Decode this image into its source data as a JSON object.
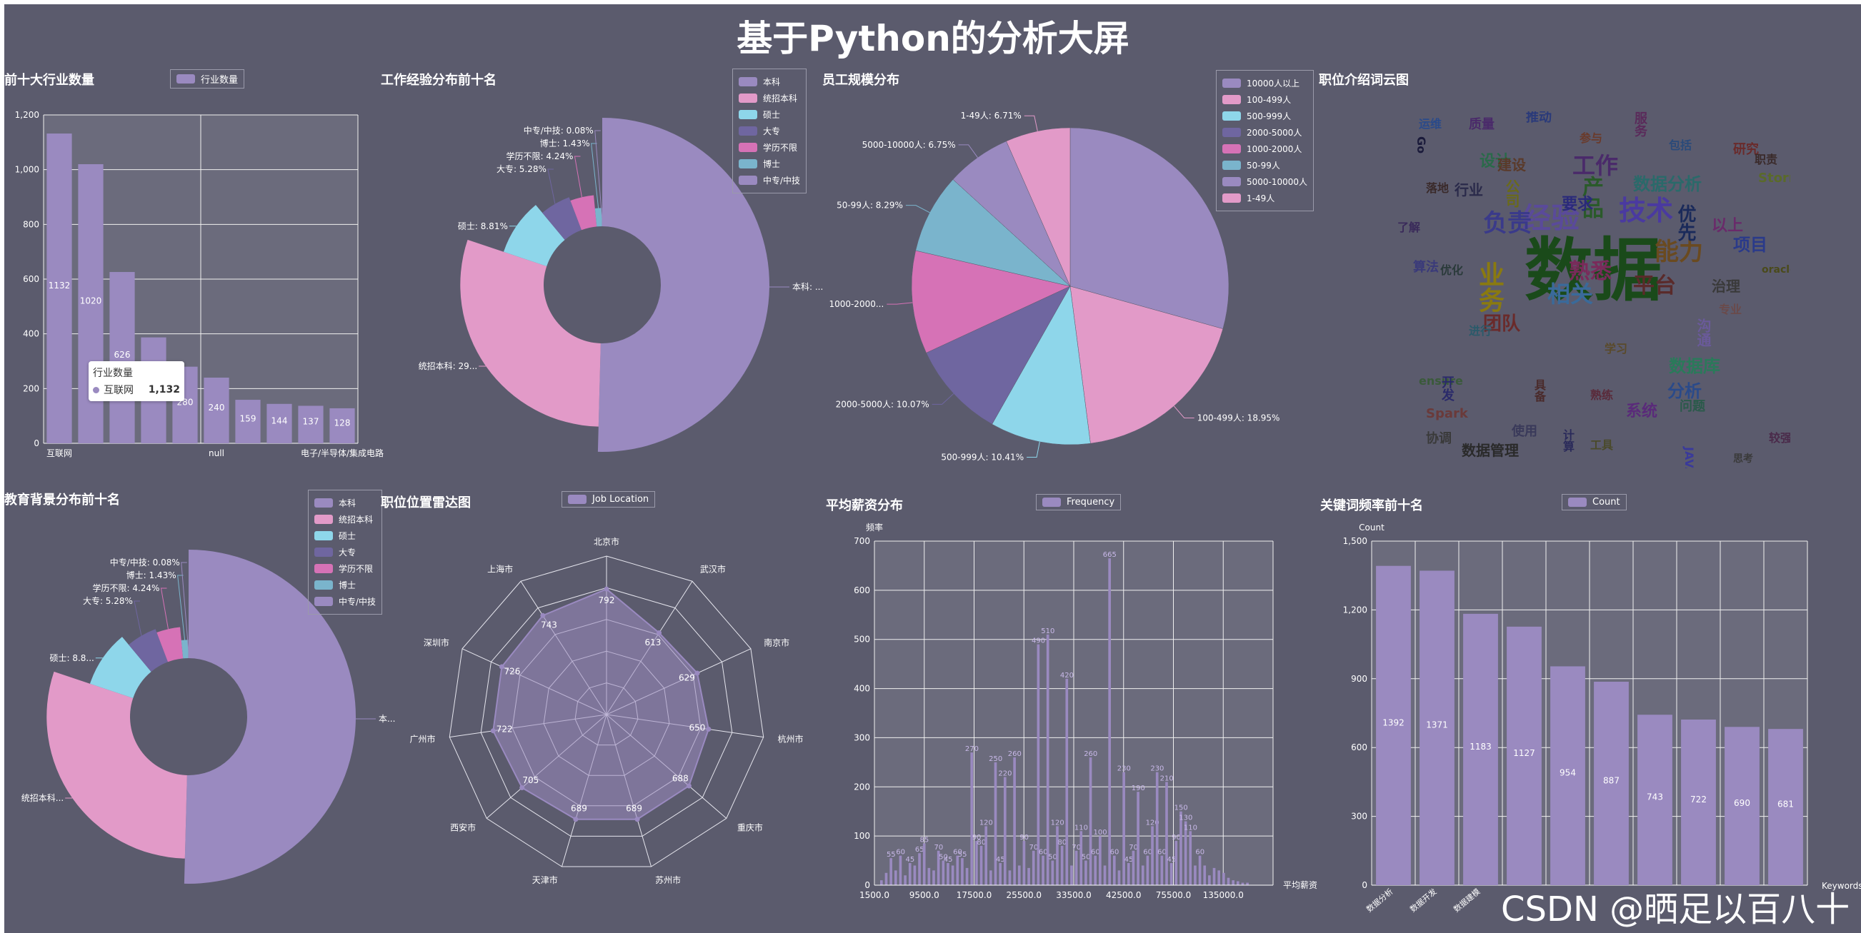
{
  "title": "基于Python的分析大屏",
  "watermark": "CSDN @晒足以百八十",
  "palette": [
    "#9a8ac0",
    "#e29ac8",
    "#8ed6ea",
    "#6f66a0",
    "#d672b6",
    "#7ab4cc",
    "#9a8ac0",
    "#e29ac8"
  ],
  "panels": {
    "industry": {
      "title": "前十大行业数量",
      "tooltip": {
        "series": "行业数量",
        "name": "互联网",
        "value": "1,132"
      },
      "chart_data": {
        "type": "bar",
        "series_name": "行业数量",
        "categories": [
          "互联网",
          "",
          "",
          "",
          "",
          "null",
          "",
          "",
          "",
          "电子/半导体/集成电路"
        ],
        "values": [
          1132,
          1020,
          626,
          387,
          280,
          240,
          159,
          144,
          137,
          128
        ],
        "labels": [
          "1132",
          "1020",
          "626",
          "",
          "280",
          "240",
          "159",
          "144",
          "137",
          "128"
        ],
        "yticks": [
          "0",
          "200",
          "400",
          "600",
          "800",
          "1,000",
          "1,200"
        ],
        "ylim": [
          0,
          1200
        ]
      }
    },
    "experience": {
      "title": "工作经验分布前十名",
      "chart_data": {
        "type": "pie",
        "variant": "rose-donut",
        "legend": [
          "本科",
          "统招本科",
          "硕士",
          "大专",
          "学历不限",
          "博士",
          "中专/中技"
        ],
        "slices": [
          {
            "name": "本科",
            "value": 50.37,
            "label": "本科: ..."
          },
          {
            "name": "统招本科",
            "value": 29.7,
            "label": "统招本科: 29..."
          },
          {
            "name": "硕士",
            "value": 8.81,
            "label": "硕士: 8.81%"
          },
          {
            "name": "大专",
            "value": 5.28,
            "label": "大专: 5.28%"
          },
          {
            "name": "学历不限",
            "value": 4.24,
            "label": "学历不限: 4.24%"
          },
          {
            "name": "博士",
            "value": 1.43,
            "label": "博士: 1.43%"
          },
          {
            "name": "中专/中技",
            "value": 0.08,
            "label": "中专/中技: 0.08%"
          }
        ]
      }
    },
    "scale": {
      "title": "员工规模分布",
      "chart_data": {
        "type": "pie",
        "legend": [
          "10000人以上",
          "100-499人",
          "500-999人",
          "2000-5000人",
          "1000-2000人",
          "50-99人",
          "5000-10000人",
          "1-49人"
        ],
        "slices": [
          {
            "name": "10000人以上",
            "value": 29.83,
            "label": ""
          },
          {
            "name": "100-499人",
            "value": 18.95,
            "label": "100-499人: 18.95%"
          },
          {
            "name": "500-999人",
            "value": 10.41,
            "label": "500-999人: 10.41%"
          },
          {
            "name": "2000-5000人",
            "value": 10.07,
            "label": "2000-5000人: 10.07%"
          },
          {
            "name": "1000-2000人",
            "value": 10.7,
            "label": "1000-2000..."
          },
          {
            "name": "50-99人",
            "value": 8.29,
            "label": "50-99人: 8.29%"
          },
          {
            "name": "5000-10000人",
            "value": 6.75,
            "label": "5000-10000人: 6.75%"
          },
          {
            "name": "1-49人",
            "value": 6.71,
            "label": "1-49人: 6.71%"
          }
        ]
      }
    },
    "wordcloud": {
      "title": "职位介绍词云图",
      "words": [
        {
          "t": "数据",
          "s": 96,
          "c": "#1a4a1a"
        },
        {
          "t": "经验",
          "s": 40,
          "c": "#5a4a9a"
        },
        {
          "t": "技术",
          "s": 38,
          "c": "#4a3aa0"
        },
        {
          "t": "业务",
          "s": 36,
          "c": "#8a7a10"
        },
        {
          "t": "能力",
          "s": 34,
          "c": "#6a4a20"
        },
        {
          "t": "负责",
          "s": 34,
          "c": "#3a3a8a"
        },
        {
          "t": "相关",
          "s": 32,
          "c": "#3a6a9a"
        },
        {
          "t": "工作",
          "s": 32,
          "c": "#4a2a6a"
        },
        {
          "t": "产品",
          "s": 30,
          "c": "#2a5a2a"
        },
        {
          "t": "熟悉",
          "s": 30,
          "c": "#7a2a5a"
        },
        {
          "t": "平台",
          "s": 30,
          "c": "#5a2a2a"
        },
        {
          "t": "数据分析",
          "s": 24,
          "c": "#2a6a6a"
        },
        {
          "t": "数据库",
          "s": 24,
          "c": "#2a7a5a"
        },
        {
          "t": "优先",
          "s": 26,
          "c": "#1a2a5a"
        },
        {
          "t": "团队",
          "s": 26,
          "c": "#6a2a2a"
        },
        {
          "t": "数据管理",
          "s": 20,
          "c": "#2a2a2a"
        },
        {
          "t": "项目",
          "s": 24,
          "c": "#2a3a8a"
        },
        {
          "t": "Storm",
          "s": 18,
          "c": "#5a6a2a"
        },
        {
          "t": "沟通",
          "s": 20,
          "c": "#6a5a9a"
        },
        {
          "t": "分析",
          "s": 24,
          "c": "#2a4a8a"
        },
        {
          "t": "设计",
          "s": 22,
          "c": "#2a6a4a"
        },
        {
          "t": "系统",
          "s": 22,
          "c": "#5a2a7a"
        },
        {
          "t": "Spark",
          "s": 18,
          "c": "#6a3a3a"
        },
        {
          "t": "JAVA",
          "s": 16,
          "c": "#3a3a9a"
        },
        {
          "t": "ensure",
          "s": 16,
          "c": "#3a5a3a"
        },
        {
          "t": "协调",
          "s": 18,
          "c": "#3a3a3a"
        },
        {
          "t": "使用",
          "s": 18,
          "c": "#3a3a5a"
        },
        {
          "t": "研究",
          "s": 18,
          "c": "#6a2a2a"
        },
        {
          "t": "服务",
          "s": 18,
          "c": "#5a2a5a"
        },
        {
          "t": "推动",
          "s": 18,
          "c": "#2a3a7a"
        },
        {
          "t": "运维",
          "s": 16,
          "c": "#2a4a8a"
        },
        {
          "t": "建设",
          "s": 20,
          "c": "#5a3a2a"
        },
        {
          "t": "要求",
          "s": 22,
          "c": "#2a2a7a"
        },
        {
          "t": "公司",
          "s": 20,
          "c": "#6a6a1a"
        },
        {
          "t": "行业",
          "s": 20,
          "c": "#2a2a4a"
        },
        {
          "t": "治理",
          "s": 20,
          "c": "#3a3a3a"
        },
        {
          "t": "以上",
          "s": 22,
          "c": "#6a2a6a"
        },
        {
          "t": "职责",
          "s": 16,
          "c": "#3a2a2a"
        },
        {
          "t": "Go",
          "s": 16,
          "c": "#1a1a3a"
        },
        {
          "t": "质量",
          "s": 18,
          "c": "#4a2a6a"
        },
        {
          "t": "算法",
          "s": 18,
          "c": "#3a3a7a"
        },
        {
          "t": "学习",
          "s": 16,
          "c": "#5a4a2a"
        },
        {
          "t": "问题",
          "s": 18,
          "c": "#2a5a4a"
        },
        {
          "t": "开发",
          "s": 18,
          "c": "#2a2a6a"
        },
        {
          "t": "oracle",
          "s": 14,
          "c": "#4a4a1a"
        },
        {
          "t": "思考",
          "s": 14,
          "c": "#3a3a3a"
        },
        {
          "t": "较强",
          "s": 16,
          "c": "#4a2a4a"
        },
        {
          "t": "工具",
          "s": 16,
          "c": "#4a4a2a"
        },
        {
          "t": "计算",
          "s": 16,
          "c": "#2a2a5a"
        },
        {
          "t": "包括",
          "s": 16,
          "c": "#2a4a7a"
        },
        {
          "t": "落地",
          "s": 16,
          "c": "#3a2a2a"
        },
        {
          "t": "参与",
          "s": 16,
          "c": "#6a3a2a"
        },
        {
          "t": "了解",
          "s": 16,
          "c": "#3a2a5a"
        },
        {
          "t": "具备",
          "s": 16,
          "c": "#4a2a2a"
        },
        {
          "t": "优化",
          "s": 16,
          "c": "#2a3a3a"
        },
        {
          "t": "进行",
          "s": 16,
          "c": "#2a5a6a"
        },
        {
          "t": "专业",
          "s": 16,
          "c": "#6a4a4a"
        },
        {
          "t": "熟练",
          "s": 16,
          "c": "#5a2a3a"
        }
      ]
    },
    "education": {
      "title": "教育背景分布前十名",
      "chart_data": {
        "type": "pie",
        "variant": "rose-donut",
        "legend": [
          "本科",
          "统招本科",
          "硕士",
          "大专",
          "学历不限",
          "博士",
          "中专/中技"
        ],
        "slices": [
          {
            "name": "本科",
            "value": 50.37,
            "label": "本..."
          },
          {
            "name": "统招本科",
            "value": 29.7,
            "label": "统招本科..."
          },
          {
            "name": "硕士",
            "value": 8.81,
            "label": "硕士: 8.8..."
          },
          {
            "name": "大专",
            "value": 5.28,
            "label": "大专: 5.28%"
          },
          {
            "name": "学历不限",
            "value": 4.24,
            "label": "学历不限: 4.24%"
          },
          {
            "name": "博士",
            "value": 1.43,
            "label": "博士: 1.43%"
          },
          {
            "name": "中专/中技",
            "value": 0.08,
            "label": "中专/中技: 0.08%"
          }
        ]
      }
    },
    "location": {
      "title": "职位位置雷达图",
      "chart_data": {
        "type": "radar",
        "series_name": "Job Location",
        "axes": [
          "北京市",
          "武汉市",
          "南京市",
          "杭州市",
          "重庆市",
          "苏州市",
          "天津市",
          "西安市",
          "广州市",
          "深圳市",
          "上海市"
        ],
        "values": [
          792,
          613,
          629,
          650,
          688,
          689,
          689,
          705,
          722,
          726,
          743
        ],
        "max": 1000
      }
    },
    "salary": {
      "title": "平均薪资分布",
      "chart_data": {
        "type": "bar",
        "series_name": "Frequency",
        "ylabel": "频率",
        "xlabel": "平均薪资",
        "xticks": [
          "1500.0",
          "9500.0",
          "17500.0",
          "25500.0",
          "33500.0",
          "42500.0",
          "75500.0",
          "135000.0"
        ],
        "yticks": [
          "0",
          "100",
          "200",
          "300",
          "400",
          "500",
          "600",
          "700"
        ],
        "ylim": [
          0,
          700
        ],
        "labels_note": "dense data labels above bars",
        "values": [
          10,
          25,
          55,
          30,
          60,
          20,
          45,
          40,
          65,
          85,
          35,
          30,
          70,
          50,
          45,
          40,
          60,
          55,
          35,
          270,
          90,
          80,
          120,
          30,
          250,
          45,
          220,
          30,
          260,
          40,
          90,
          35,
          70,
          490,
          60,
          510,
          50,
          120,
          80,
          420,
          40,
          70,
          110,
          50,
          260,
          60,
          100,
          40,
          665,
          60,
          30,
          230,
          45,
          70,
          190,
          40,
          60,
          120,
          230,
          60,
          210,
          45,
          90,
          150,
          130,
          110,
          40,
          60,
          40,
          20,
          35,
          30,
          25,
          15,
          10,
          8,
          5,
          5
        ]
      }
    },
    "keywords": {
      "title": "关键词频率前十名",
      "chart_data": {
        "type": "bar",
        "series_name": "Count",
        "ylabel": "Count",
        "xlabel": "Keywords",
        "categories": [
          "数据分析",
          "数据开发",
          "数据建模",
          "",
          "",
          "",
          "",
          "",
          "",
          ""
        ],
        "values": [
          1392,
          1371,
          1183,
          1127,
          954,
          887,
          743,
          722,
          690,
          681
        ],
        "labels": [
          "1392",
          "1371",
          "1183",
          "1127",
          "954",
          "887",
          "743",
          "722",
          "690",
          "681"
        ],
        "yticks": [
          "0",
          "300",
          "600",
          "900",
          "1,200",
          "1,500"
        ],
        "ylim": [
          0,
          1500
        ]
      }
    }
  }
}
